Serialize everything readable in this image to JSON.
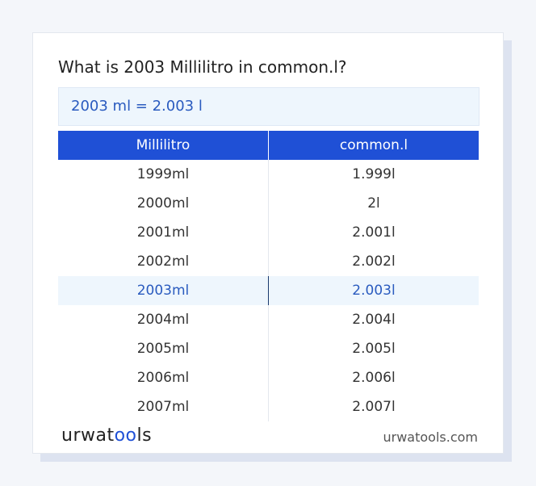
{
  "title": "What is 2003 Millilitro in common.l?",
  "result": "2003 ml = 2.003 l",
  "table": {
    "headers": [
      "Millilitro",
      "common.l"
    ],
    "rows": [
      [
        "1999ml",
        "1.999l"
      ],
      [
        "2000ml",
        "2l"
      ],
      [
        "2001ml",
        "2.001l"
      ],
      [
        "2002ml",
        "2.002l"
      ],
      [
        "2003ml",
        "2.003l"
      ],
      [
        "2004ml",
        "2.004l"
      ],
      [
        "2005ml",
        "2.005l"
      ],
      [
        "2006ml",
        "2.006l"
      ],
      [
        "2007ml",
        "2.007l"
      ]
    ],
    "highlight_row": 4
  },
  "footer": {
    "logo": [
      "urwat",
      "oo",
      "ls"
    ],
    "site": "urwatools.com"
  }
}
